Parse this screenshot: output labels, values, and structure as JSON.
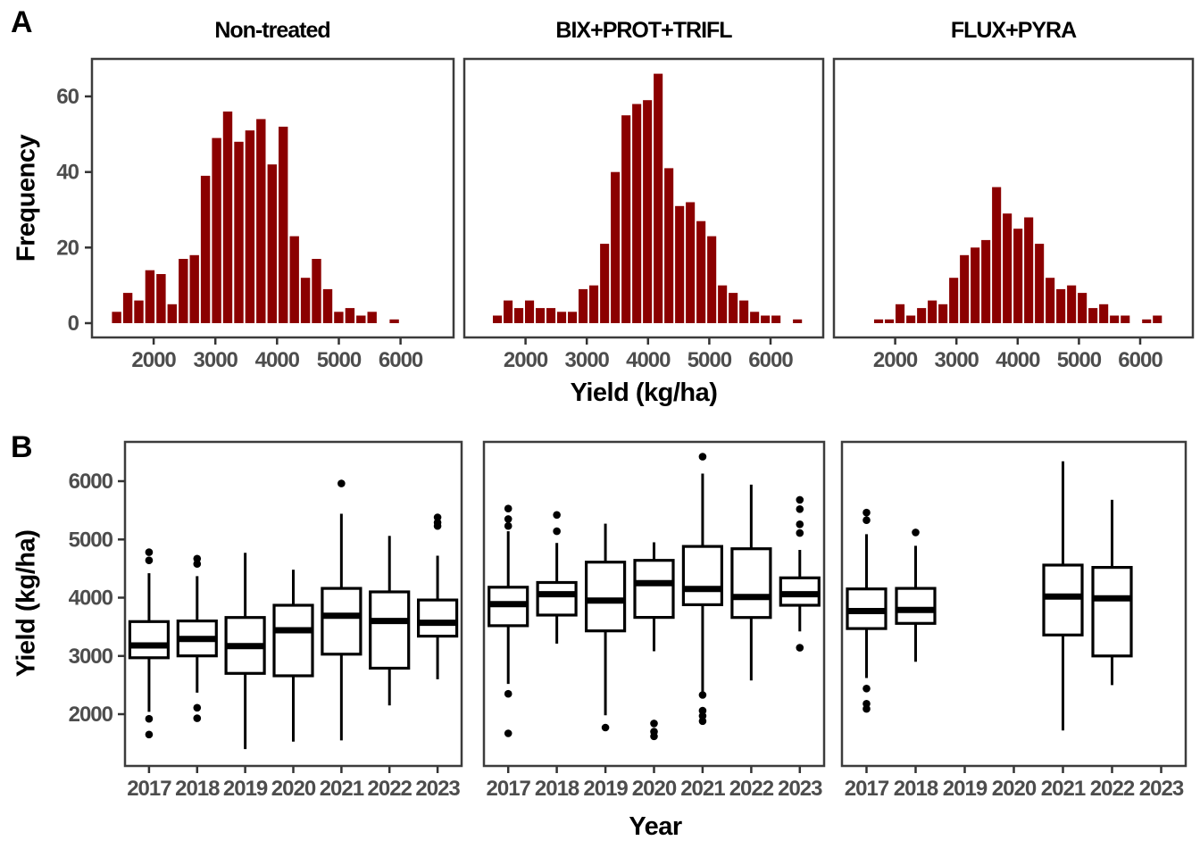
{
  "figure": {
    "labels": {
      "panel_a": "A",
      "panel_b": "B"
    },
    "colors": {
      "background": "#ffffff",
      "bar_fill": "#8B0000",
      "axis_text": "#4d4d4d",
      "axis_line": "#333333",
      "panel_border": "#3c3c3c",
      "box_stroke": "#000000",
      "box_fill": "#ffffff",
      "title_text": "#000000"
    }
  },
  "chart_data": [
    {
      "type": "bar",
      "panel": "A",
      "subtype": "histogram",
      "ylabel": "Frequency",
      "xlabel": "Yield (kg/ha)",
      "y_ticks": [
        0,
        20,
        40,
        60
      ],
      "x_ticks": [
        2000,
        3000,
        4000,
        5000,
        6000
      ],
      "xlim": [
        1000,
        6860
      ],
      "ylim": [
        0,
        70
      ],
      "grid": false,
      "histograms": [
        {
          "treatment": "Non-treated",
          "bin_center_start": 1400,
          "bin_width": 180,
          "counts": [
            3,
            8,
            6,
            14,
            13,
            5,
            17,
            18,
            39,
            49,
            56,
            48,
            51,
            54,
            42,
            52,
            23,
            12,
            17,
            9,
            3,
            4,
            2,
            3,
            0,
            1
          ]
        },
        {
          "treatment": "BIX+PROT+TRIFL",
          "bin_center_start": 1540,
          "bin_width": 175,
          "counts": [
            2,
            6,
            4,
            6,
            4,
            4,
            3,
            3,
            9,
            10,
            21,
            40,
            55,
            58,
            59,
            66,
            41,
            31,
            32,
            27,
            23,
            10,
            8,
            6,
            3,
            2,
            2,
            0,
            1
          ]
        },
        {
          "treatment": "FLUX+PYRA",
          "bin_center_start": 1730,
          "bin_width": 175,
          "counts": [
            1,
            1,
            5,
            2,
            4,
            6,
            5,
            12,
            18,
            20,
            22,
            36,
            29,
            25,
            28,
            21,
            12,
            9,
            10,
            8,
            4,
            5,
            2,
            2,
            0,
            1,
            2
          ]
        }
      ]
    },
    {
      "type": "boxplot",
      "panel": "B",
      "ylabel": "Yield (kg/ha)",
      "xlabel": "Year",
      "categories": [
        "2017",
        "2018",
        "2019",
        "2020",
        "2021",
        "2022",
        "2023"
      ],
      "y_ticks": [
        2000,
        3000,
        4000,
        5000,
        6000
      ],
      "ylim": [
        1100,
        6680
      ],
      "grid": false,
      "groups": [
        {
          "treatment": "Non-treated",
          "boxes": [
            {
              "year": "2017",
              "low": 2040,
              "q1": 2970,
              "median": 3180,
              "q3": 3590,
              "high": 4420,
              "outliers": [
                4780,
                4640,
                1920,
                1650
              ]
            },
            {
              "year": "2018",
              "low": 2370,
              "q1": 3000,
              "median": 3290,
              "q3": 3600,
              "high": 4370,
              "outliers": [
                4670,
                4580,
                2110,
                1930
              ]
            },
            {
              "year": "2019",
              "low": 1400,
              "q1": 2700,
              "median": 3170,
              "q3": 3660,
              "high": 4770,
              "outliers": []
            },
            {
              "year": "2020",
              "low": 1530,
              "q1": 2660,
              "median": 3440,
              "q3": 3870,
              "high": 4480,
              "outliers": []
            },
            {
              "year": "2021",
              "low": 1550,
              "q1": 3030,
              "median": 3690,
              "q3": 4160,
              "high": 5440,
              "outliers": [
                5960
              ]
            },
            {
              "year": "2022",
              "low": 2150,
              "q1": 2790,
              "median": 3600,
              "q3": 4100,
              "high": 5060,
              "outliers": []
            },
            {
              "year": "2023",
              "low": 2600,
              "q1": 3340,
              "median": 3570,
              "q3": 3960,
              "high": 4720,
              "outliers": [
                5380,
                5290,
                5230
              ]
            }
          ]
        },
        {
          "treatment": "BIX+PROT+TRIFL",
          "boxes": [
            {
              "year": "2017",
              "low": 2520,
              "q1": 3520,
              "median": 3890,
              "q3": 4180,
              "high": 5140,
              "outliers": [
                5530,
                5350,
                5230,
                2350,
                1670
              ]
            },
            {
              "year": "2018",
              "low": 3210,
              "q1": 3700,
              "median": 4060,
              "q3": 4260,
              "high": 4940,
              "outliers": [
                5420,
                5140
              ]
            },
            {
              "year": "2019",
              "low": 1980,
              "q1": 3430,
              "median": 3950,
              "q3": 4610,
              "high": 5270,
              "outliers": [
                1770
              ]
            },
            {
              "year": "2020",
              "low": 3080,
              "q1": 3660,
              "median": 4250,
              "q3": 4640,
              "high": 4950,
              "outliers": [
                1840,
                1700,
                1620
              ]
            },
            {
              "year": "2021",
              "low": 2370,
              "q1": 3880,
              "median": 4150,
              "q3": 4880,
              "high": 6130,
              "outliers": [
                6420,
                2330,
                2060,
                1970,
                1880
              ]
            },
            {
              "year": "2022",
              "low": 2580,
              "q1": 3660,
              "median": 4010,
              "q3": 4840,
              "high": 5940,
              "outliers": []
            },
            {
              "year": "2023",
              "low": 3420,
              "q1": 3870,
              "median": 4060,
              "q3": 4340,
              "high": 4820,
              "outliers": [
                5680,
                5520,
                5260,
                5110,
                3140
              ]
            }
          ]
        },
        {
          "treatment": "FLUX+PYRA",
          "boxes": [
            {
              "year": "2017",
              "low": 2620,
              "q1": 3470,
              "median": 3770,
              "q3": 4150,
              "high": 5090,
              "outliers": [
                5460,
                5330,
                2440,
                2180,
                2090
              ]
            },
            {
              "year": "2018",
              "low": 2900,
              "q1": 3560,
              "median": 3790,
              "q3": 4160,
              "high": 4890,
              "outliers": [
                5120
              ]
            },
            null,
            null,
            {
              "year": "2021",
              "low": 1720,
              "q1": 3360,
              "median": 4020,
              "q3": 4560,
              "high": 6340,
              "outliers": []
            },
            {
              "year": "2022",
              "low": 2500,
              "q1": 3000,
              "median": 3990,
              "q3": 4520,
              "high": 5680,
              "outliers": []
            },
            null
          ]
        }
      ]
    }
  ]
}
